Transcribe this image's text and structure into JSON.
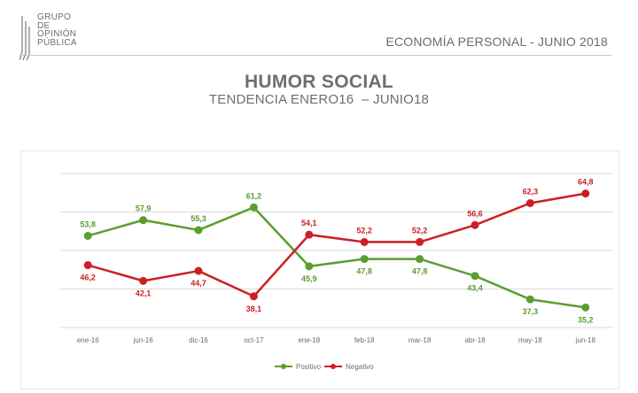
{
  "header": {
    "logo_lines": [
      "GRUPO",
      "DE",
      "OPINIÓN",
      "PÚBLICA"
    ],
    "report_title": "ECONOMÍA PERSONAL - JUNIO 2018"
  },
  "colors": {
    "positivo": "#5a9e2f",
    "negativo": "#cc1f23",
    "grid": "#d9d9d9",
    "text": "#6b6b6b"
  },
  "chart_data": {
    "type": "line",
    "title": "HUMOR SOCIAL",
    "subtitle": "TENDENCIA ENERO16  – JUNIO18",
    "categories": [
      "ene-16",
      "jun-16",
      "dic-16",
      "oct-17",
      "ene-18",
      "feb-18",
      "mar-18",
      "abr-18",
      "may-18",
      "jun-18"
    ],
    "series": [
      {
        "name": "Positivo",
        "color": "#5a9e2f",
        "values": [
          53.8,
          57.9,
          55.3,
          61.2,
          45.9,
          47.8,
          47.8,
          43.4,
          37.3,
          35.2
        ],
        "labels": [
          "53,8",
          "57,9",
          "55,3",
          "61,2",
          "45,9",
          "47,8",
          "47,8",
          "43,4",
          "37,3",
          "35,2"
        ]
      },
      {
        "name": "Negativo",
        "color": "#cc1f23",
        "values": [
          46.2,
          42.1,
          44.7,
          38.1,
          54.1,
          52.2,
          52.2,
          56.6,
          62.3,
          64.8
        ],
        "labels": [
          "46,2",
          "42,1",
          "44,7",
          "38,1",
          "54,1",
          "52,2",
          "52,2",
          "56,6",
          "62,3",
          "64,8"
        ]
      }
    ],
    "ylim": [
      30,
      70
    ],
    "grid": true,
    "legend_position": "bottom-center"
  }
}
